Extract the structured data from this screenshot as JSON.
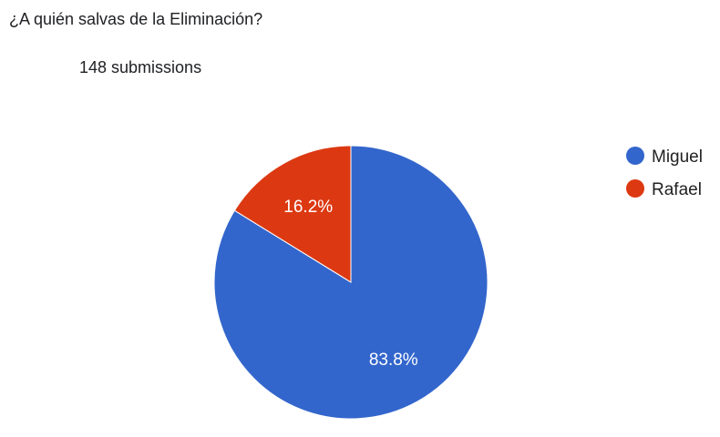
{
  "question": {
    "title": "¿A quién salvas de la Eliminación?",
    "responses": "148 submissions"
  },
  "chart_data": {
    "type": "pie",
    "title": "¿A quién salvas de la Eliminación?",
    "slices": [
      {
        "label": "Miguel",
        "value": 83.8,
        "display": "83.8%",
        "color": "#3366cc"
      },
      {
        "label": "Rafael",
        "value": 16.2,
        "display": "16.2%",
        "color": "#dc3912"
      }
    ],
    "legend_placement": "right"
  }
}
